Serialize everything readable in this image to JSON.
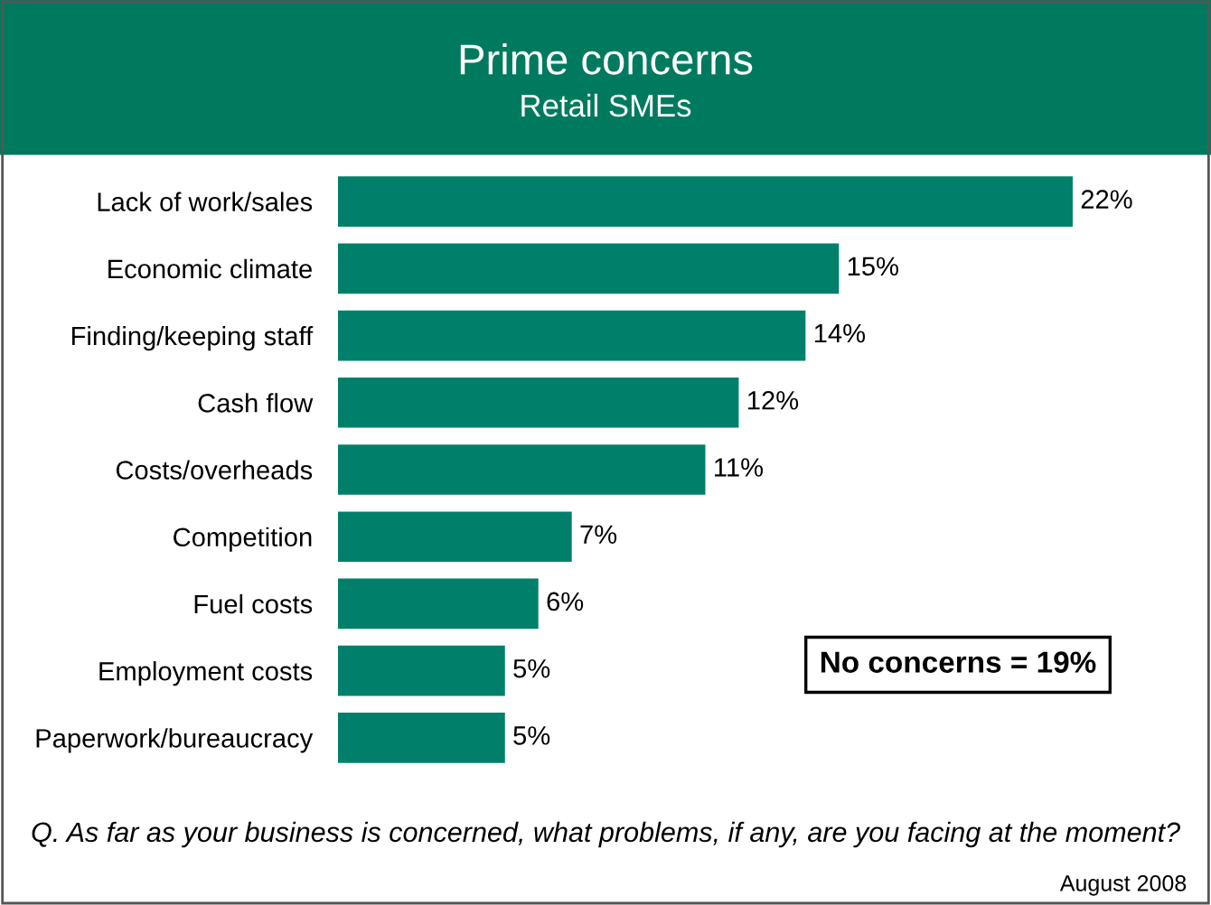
{
  "chart_data": {
    "type": "bar",
    "orientation": "horizontal",
    "title": "Prime concerns",
    "subtitle": "Retail SMEs",
    "categories": [
      "Lack of work/sales",
      "Economic climate",
      "Finding/keeping staff",
      "Cash flow",
      "Costs/overheads",
      "Competition",
      "Fuel costs",
      "Employment costs",
      "Paperwork/bureaucracy"
    ],
    "values": [
      22,
      15,
      14,
      12,
      11,
      7,
      6,
      5,
      5
    ],
    "value_labels": [
      "22%",
      "15%",
      "14%",
      "12%",
      "11%",
      "7%",
      "6%",
      "5%",
      "5%"
    ],
    "color": "#00806a",
    "grid": false,
    "legend": false,
    "tick_labels": "y",
    "annotations": [
      "No concerns = 19%",
      "Q. As far as your business is concerned, what problems, if any, are you facing at the moment?",
      "August 2008"
    ]
  }
}
